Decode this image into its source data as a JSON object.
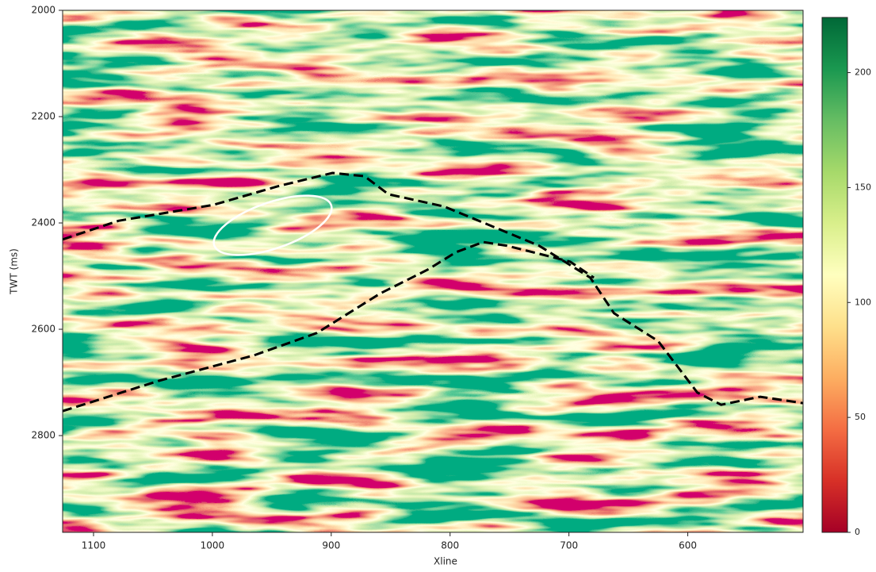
{
  "chart_data": {
    "type": "image",
    "xlabel": "Xline",
    "ylabel": "TWT (ms)",
    "xlim": [
      1126,
      503
    ],
    "ylim": [
      2982,
      2000
    ],
    "xticks": [
      1100,
      1000,
      900,
      800,
      700,
      600
    ],
    "yticks": [
      2000,
      2200,
      2400,
      2600,
      2800
    ],
    "colormap": "RdYlGn",
    "colorbar": {
      "lim": [
        0,
        224
      ],
      "ticks": [
        0,
        50,
        100,
        150,
        200
      ]
    },
    "series": [
      {
        "color": "#000000",
        "dashed": true,
        "x": [
          1126,
          1079,
          999,
          945,
          899,
          872,
          852,
          805,
          765,
          725,
          682,
          662,
          625,
          592,
          572,
          539,
          503
        ],
        "values": [
          2431,
          2396,
          2366,
          2331,
          2306,
          2312,
          2346,
          2369,
          2406,
          2443,
          2503,
          2570,
          2622,
          2719,
          2742,
          2727,
          2739
        ]
      },
      {
        "color": "#000000",
        "dashed": true,
        "x": [
          1126,
          1045,
          965,
          912,
          859,
          819,
          795,
          772,
          752,
          725,
          699,
          679
        ],
        "values": [
          2754,
          2697,
          2649,
          2607,
          2533,
          2488,
          2455,
          2436,
          2443,
          2458,
          2473,
          2503
        ]
      }
    ]
  }
}
